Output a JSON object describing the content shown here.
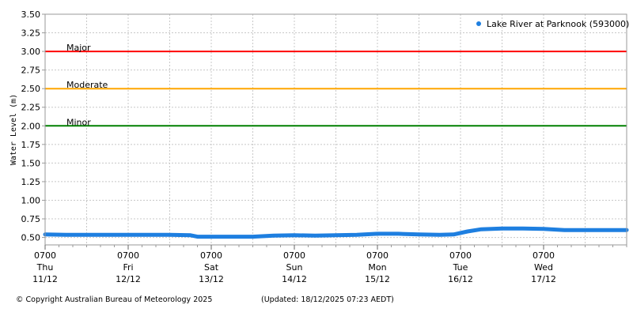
{
  "chart_data": {
    "type": "line",
    "title": "",
    "xlabel": "",
    "ylabel": "Water Level (m)",
    "ylim": [
      0.4,
      3.5
    ],
    "xlim": [
      "2025-12-11T07:00",
      "2025-12-18T07:00"
    ],
    "yticks": [
      "0.50",
      "0.75",
      "1.00",
      "1.25",
      "1.50",
      "1.75",
      "2.00",
      "2.25",
      "2.50",
      "2.75",
      "3.00",
      "3.25",
      "3.50"
    ],
    "xticks": [
      {
        "x": "2025-12-11T07:00",
        "time": "0700",
        "day": "Thu",
        "date": "11/12"
      },
      {
        "x": "2025-12-12T07:00",
        "time": "0700",
        "day": "Fri",
        "date": "12/12"
      },
      {
        "x": "2025-12-13T07:00",
        "time": "0700",
        "day": "Sat",
        "date": "13/12"
      },
      {
        "x": "2025-12-14T07:00",
        "time": "0700",
        "day": "Sun",
        "date": "14/12"
      },
      {
        "x": "2025-12-15T07:00",
        "time": "0700",
        "day": "Mon",
        "date": "15/12"
      },
      {
        "x": "2025-12-16T07:00",
        "time": "0700",
        "day": "Tue",
        "date": "16/12"
      },
      {
        "x": "2025-12-17T07:00",
        "time": "0700",
        "day": "Wed",
        "date": "17/12"
      }
    ],
    "grid": true,
    "legend_position": "top-right",
    "thresholds": [
      {
        "name": "Major",
        "value": 3.0,
        "color": "#ff0000"
      },
      {
        "name": "Moderate",
        "value": 2.5,
        "color": "#ffa500"
      },
      {
        "name": "Minor",
        "value": 2.0,
        "color": "#008000"
      }
    ],
    "series": [
      {
        "name": "Lake River at Parknook (593000)",
        "color": "#1e7fe0",
        "points": [
          [
            "2025-12-11T07:00",
            0.54
          ],
          [
            "2025-12-11T13:00",
            0.535
          ],
          [
            "2025-12-11T19:00",
            0.535
          ],
          [
            "2025-12-12T01:00",
            0.535
          ],
          [
            "2025-12-12T07:00",
            0.535
          ],
          [
            "2025-12-12T13:00",
            0.535
          ],
          [
            "2025-12-12T19:00",
            0.535
          ],
          [
            "2025-12-13T01:00",
            0.53
          ],
          [
            "2025-12-13T03:00",
            0.51
          ],
          [
            "2025-12-13T07:00",
            0.51
          ],
          [
            "2025-12-13T13:00",
            0.51
          ],
          [
            "2025-12-13T19:00",
            0.51
          ],
          [
            "2025-12-14T01:00",
            0.525
          ],
          [
            "2025-12-14T07:00",
            0.53
          ],
          [
            "2025-12-14T13:00",
            0.525
          ],
          [
            "2025-12-14T19:00",
            0.53
          ],
          [
            "2025-12-15T01:00",
            0.535
          ],
          [
            "2025-12-15T07:00",
            0.55
          ],
          [
            "2025-12-15T13:00",
            0.55
          ],
          [
            "2025-12-15T19:00",
            0.54
          ],
          [
            "2025-12-16T01:00",
            0.535
          ],
          [
            "2025-12-16T05:00",
            0.54
          ],
          [
            "2025-12-16T09:00",
            0.58
          ],
          [
            "2025-12-16T13:00",
            0.61
          ],
          [
            "2025-12-16T19:00",
            0.62
          ],
          [
            "2025-12-17T01:00",
            0.62
          ],
          [
            "2025-12-17T07:00",
            0.615
          ],
          [
            "2025-12-17T13:00",
            0.6
          ],
          [
            "2025-12-17T19:00",
            0.6
          ],
          [
            "2025-12-18T01:00",
            0.6
          ],
          [
            "2025-12-18T07:00",
            0.6
          ]
        ]
      }
    ]
  },
  "footer": {
    "copyright": "© Copyright Australian Bureau of Meteorology 2025",
    "updated": "(Updated: 18/12/2025 07:23 AEDT)"
  }
}
